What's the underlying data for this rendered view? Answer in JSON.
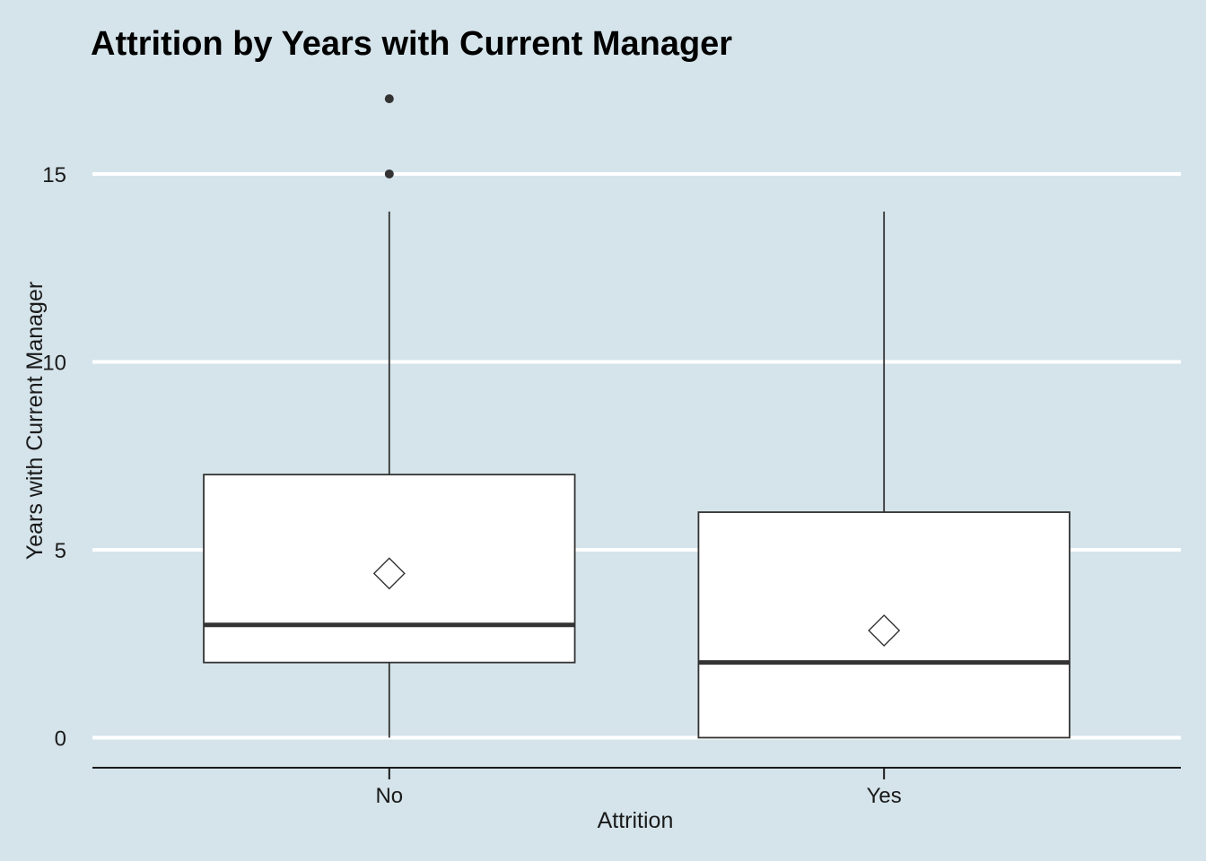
{
  "chart_data": {
    "type": "boxplot",
    "title": "Attrition by Years with Current Manager",
    "xlabel": "Attrition",
    "ylabel": "Years with Current Manager",
    "categories": [
      "No",
      "Yes"
    ],
    "ylim": [
      -0.8,
      17.6
    ],
    "yticks": [
      0,
      5,
      10,
      15
    ],
    "grid": "horizontal",
    "boxes": [
      {
        "category": "No",
        "q1": 2,
        "median": 3,
        "q3": 7,
        "whisker_low": 0,
        "whisker_high": 14,
        "mean": 4.37,
        "outliers": [
          15,
          17
        ]
      },
      {
        "category": "Yes",
        "q1": 0,
        "median": 2,
        "q3": 6,
        "whisker_low": 0,
        "whisker_high": 14,
        "mean": 2.85,
        "outliers": []
      }
    ]
  },
  "colors": {
    "background": "#d5e4eb",
    "gridline": "#ffffff",
    "box_fill": "#ffffff",
    "box_stroke": "#333333",
    "text": "#000000"
  }
}
